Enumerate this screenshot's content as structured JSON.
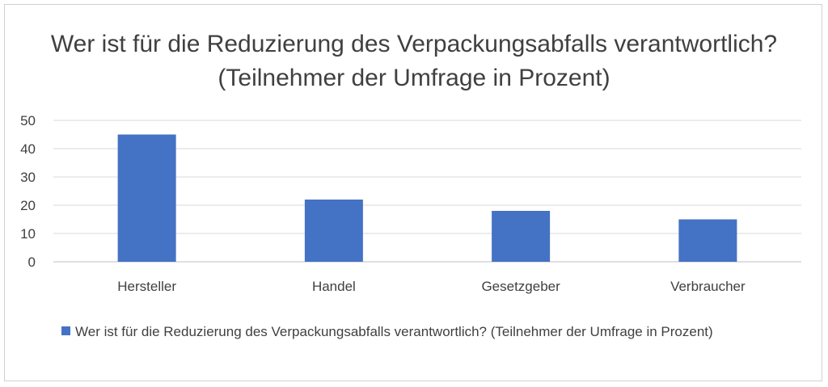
{
  "chart_data": {
    "type": "bar",
    "title": "Wer ist für die Reduzierung des Verpackungsabfalls verantwortlich? (Teilnehmer der Umfrage in Prozent)",
    "categories": [
      "Hersteller",
      "Handel",
      "Gesetzgeber",
      "Verbraucher"
    ],
    "series": [
      {
        "name": "Wer ist für die Reduzierung des Verpackungsabfalls verantwortlich? (Teilnehmer der Umfrage in Prozent)",
        "values": [
          45,
          22,
          18,
          15
        ],
        "color": "#4472c4"
      }
    ],
    "y_ticks": [
      "0",
      "10",
      "20",
      "30",
      "40",
      "50"
    ],
    "ylim": [
      0,
      50
    ],
    "grid": true,
    "legend_position": "bottom"
  }
}
